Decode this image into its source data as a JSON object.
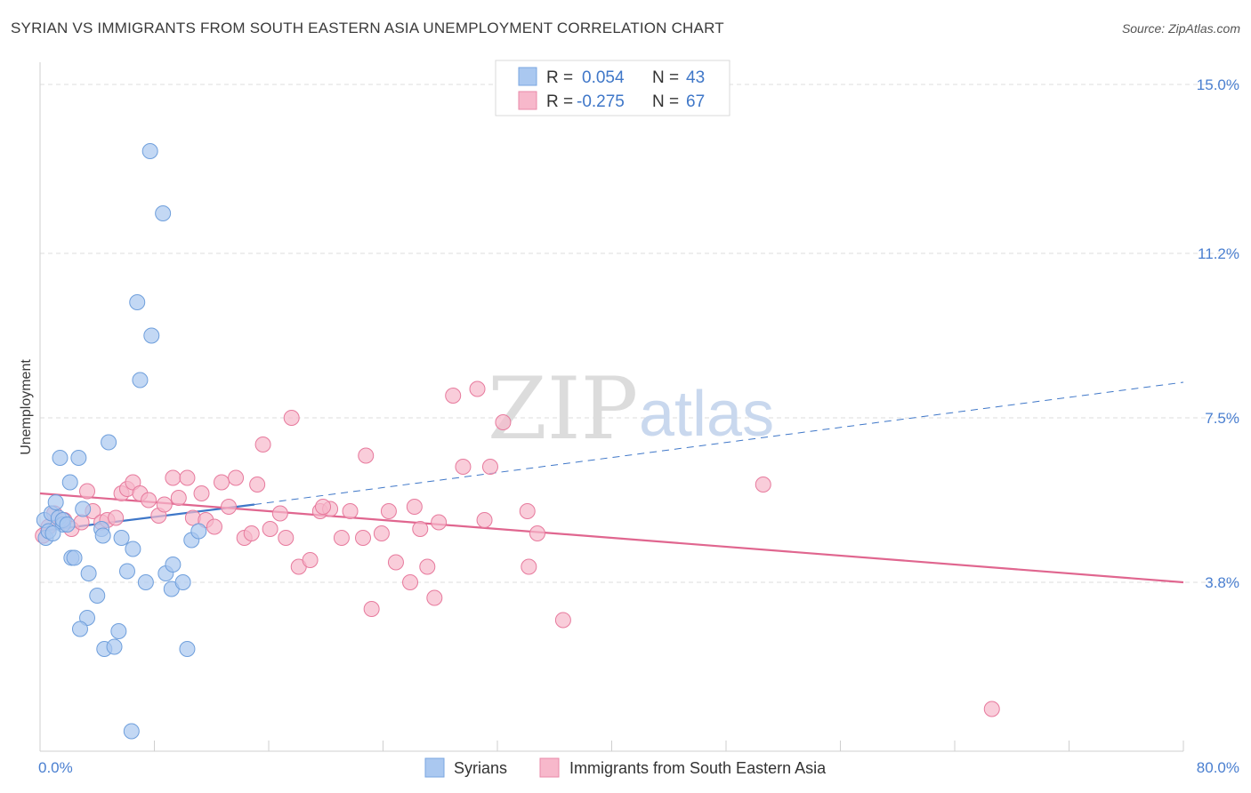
{
  "title": "SYRIAN VS IMMIGRANTS FROM SOUTH EASTERN ASIA UNEMPLOYMENT CORRELATION CHART",
  "source": "Source: ZipAtlas.com",
  "watermark": {
    "part1": "ZIP",
    "part2": "atlas"
  },
  "legend_top": [
    {
      "r_label": "R =",
      "r_value": "0.054",
      "n_label": "N =",
      "n_value": "43",
      "color": "#aac8f0"
    },
    {
      "r_label": "R =",
      "r_value": "-0.275",
      "n_label": "N =",
      "n_value": "67",
      "color": "#f7b8cb"
    }
  ],
  "legend_bottom": [
    {
      "label": "Syrians",
      "color": "#aac8f0"
    },
    {
      "label": "Immigrants from South Eastern Asia",
      "color": "#f7b8cb"
    }
  ],
  "chart_data": {
    "type": "scatter",
    "title": "SYRIAN VS IMMIGRANTS FROM SOUTH EASTERN ASIA UNEMPLOYMENT CORRELATION CHART",
    "xlabel": "",
    "ylabel": "Unemployment",
    "xlim": [
      0,
      80
    ],
    "ylim": [
      0,
      15.5
    ],
    "x_tick_labels": [
      "0.0%",
      "80.0%"
    ],
    "y_ticks": [
      {
        "value": 3.8,
        "label": "3.8%"
      },
      {
        "value": 7.5,
        "label": "7.5%"
      },
      {
        "value": 11.2,
        "label": "11.2%"
      },
      {
        "value": 15.0,
        "label": "15.0%"
      }
    ],
    "series": [
      {
        "name": "Syrians",
        "color": "#6f9fdc",
        "fill": "#aac8f0",
        "points": [
          [
            0.3,
            5.2
          ],
          [
            0.4,
            4.8
          ],
          [
            0.6,
            4.95
          ],
          [
            0.8,
            5.35
          ],
          [
            1.1,
            5.6
          ],
          [
            1.3,
            5.25
          ],
          [
            1.4,
            6.6
          ],
          [
            1.6,
            5.1
          ],
          [
            2.1,
            6.05
          ],
          [
            2.2,
            4.35
          ],
          [
            2.4,
            4.35
          ],
          [
            2.7,
            6.6
          ],
          [
            3.0,
            5.45
          ],
          [
            3.4,
            4.0
          ],
          [
            3.3,
            3.0
          ],
          [
            2.8,
            2.75
          ],
          [
            4.0,
            3.5
          ],
          [
            4.3,
            5.0
          ],
          [
            4.4,
            4.85
          ],
          [
            4.5,
            2.3
          ],
          [
            4.8,
            6.95
          ],
          [
            5.2,
            2.35
          ],
          [
            5.5,
            2.7
          ],
          [
            5.7,
            4.8
          ],
          [
            6.1,
            4.05
          ],
          [
            6.5,
            4.55
          ],
          [
            6.8,
            10.1
          ],
          [
            7.0,
            8.35
          ],
          [
            7.4,
            3.8
          ],
          [
            7.7,
            13.5
          ],
          [
            7.8,
            9.35
          ],
          [
            8.6,
            12.1
          ],
          [
            8.8,
            4.0
          ],
          [
            9.2,
            3.65
          ],
          [
            9.3,
            4.2
          ],
          [
            10.0,
            3.8
          ],
          [
            10.3,
            2.3
          ],
          [
            10.6,
            4.75
          ],
          [
            11.1,
            4.95
          ],
          [
            6.4,
            0.45
          ],
          [
            1.6,
            5.2
          ],
          [
            0.9,
            4.9
          ],
          [
            1.9,
            5.1
          ]
        ]
      },
      {
        "name": "Immigrants from South Eastern Asia",
        "color": "#e77a9d",
        "fill": "#f7b8cb",
        "points": [
          [
            0.2,
            4.85
          ],
          [
            0.6,
            5.05
          ],
          [
            1.0,
            5.35
          ],
          [
            1.7,
            5.2
          ],
          [
            2.2,
            5.0
          ],
          [
            2.9,
            5.15
          ],
          [
            3.3,
            5.85
          ],
          [
            3.7,
            5.4
          ],
          [
            4.3,
            5.15
          ],
          [
            4.7,
            5.2
          ],
          [
            5.3,
            5.25
          ],
          [
            5.7,
            5.8
          ],
          [
            6.1,
            5.9
          ],
          [
            6.5,
            6.05
          ],
          [
            7.0,
            5.8
          ],
          [
            7.6,
            5.65
          ],
          [
            8.3,
            5.3
          ],
          [
            9.3,
            6.15
          ],
          [
            9.7,
            5.7
          ],
          [
            10.3,
            6.15
          ],
          [
            10.7,
            5.25
          ],
          [
            11.3,
            5.8
          ],
          [
            11.6,
            5.2
          ],
          [
            12.2,
            5.05
          ],
          [
            12.7,
            6.05
          ],
          [
            13.2,
            5.5
          ],
          [
            13.7,
            6.15
          ],
          [
            14.3,
            4.8
          ],
          [
            14.8,
            4.9
          ],
          [
            15.2,
            6.0
          ],
          [
            15.6,
            6.9
          ],
          [
            16.1,
            5.0
          ],
          [
            16.8,
            5.35
          ],
          [
            17.2,
            4.8
          ],
          [
            17.6,
            7.5
          ],
          [
            18.1,
            4.15
          ],
          [
            18.9,
            4.3
          ],
          [
            19.6,
            5.4
          ],
          [
            20.3,
            5.45
          ],
          [
            21.1,
            4.8
          ],
          [
            21.7,
            5.4
          ],
          [
            22.6,
            4.8
          ],
          [
            22.8,
            6.65
          ],
          [
            23.2,
            3.2
          ],
          [
            23.9,
            4.9
          ],
          [
            24.4,
            5.4
          ],
          [
            24.9,
            4.25
          ],
          [
            25.9,
            3.8
          ],
          [
            26.6,
            5.0
          ],
          [
            27.1,
            4.15
          ],
          [
            27.6,
            3.45
          ],
          [
            27.9,
            5.15
          ],
          [
            28.9,
            8.0
          ],
          [
            29.6,
            6.4
          ],
          [
            30.6,
            8.15
          ],
          [
            31.1,
            5.2
          ],
          [
            31.5,
            6.4
          ],
          [
            32.4,
            7.4
          ],
          [
            34.1,
            5.4
          ],
          [
            34.2,
            4.15
          ],
          [
            34.8,
            4.9
          ],
          [
            36.6,
            2.95
          ],
          [
            26.2,
            5.5
          ],
          [
            19.8,
            5.5
          ],
          [
            8.7,
            5.55
          ],
          [
            50.6,
            6.0
          ],
          [
            66.6,
            0.95
          ]
        ]
      }
    ],
    "trend_lines": [
      {
        "series": "Syrians",
        "style": "solid",
        "from": [
          0,
          4.95
        ],
        "to": [
          15,
          5.55
        ]
      },
      {
        "series": "Syrians",
        "style": "dashed",
        "from": [
          15,
          5.55
        ],
        "to": [
          80,
          8.3
        ]
      },
      {
        "series": "Immigrants from South Eastern Asia",
        "style": "solid",
        "from": [
          0,
          5.8
        ],
        "to": [
          80,
          3.8
        ]
      }
    ],
    "legend": [
      "Syrians",
      "Immigrants from South Eastern Asia"
    ],
    "grid": true
  }
}
